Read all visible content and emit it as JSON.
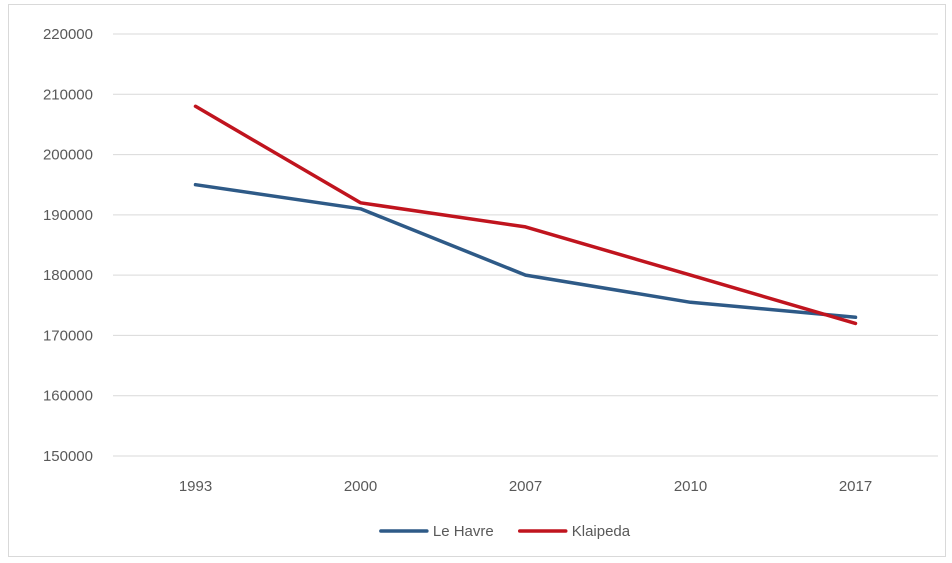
{
  "chart_data": {
    "type": "line",
    "title": "",
    "xlabel": "",
    "ylabel": "",
    "categories": [
      "1993",
      "2000",
      "2007",
      "2010",
      "2017"
    ],
    "series": [
      {
        "name": "Le Havre",
        "color": "#2e5a87",
        "values": [
          195000,
          191000,
          180000,
          175500,
          173000
        ]
      },
      {
        "name": "Klaipeda",
        "color": "#c0141e",
        "values": [
          208000,
          192000,
          188000,
          180000,
          172000
        ]
      }
    ],
    "ylim": [
      150000,
      220000
    ],
    "yticks": [
      "150000",
      "160000",
      "170000",
      "180000",
      "190000",
      "200000",
      "210000",
      "220000"
    ],
    "grid": true,
    "legend_position": "bottom-center",
    "gridline_color": "#d9d9d9"
  }
}
